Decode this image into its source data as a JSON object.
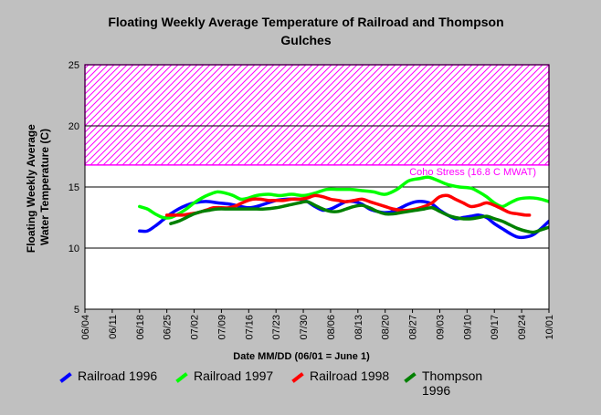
{
  "chart_data": {
    "type": "line",
    "title_lines": [
      "Floating Weekly Average Temperature of Railroad and Thompson",
      "Gulches"
    ],
    "ylabel_lines": [
      "Floating Weekly Average",
      "Water Temperature (C)"
    ],
    "xlabel": "Date MM/DD (06/01 = June 1)",
    "ylim": [
      5,
      25
    ],
    "yticks": [
      5,
      10,
      15,
      20,
      25
    ],
    "x_tick_labels": [
      "06/04",
      "06/11",
      "06/18",
      "06/25",
      "07/02",
      "07/09",
      "07/16",
      "07/23",
      "07/30",
      "08/06",
      "08/13",
      "08/20",
      "08/27",
      "09/03",
      "09/10",
      "09/17",
      "09/24",
      "10/01"
    ],
    "x_tick_days": [
      3,
      10,
      17,
      24,
      31,
      38,
      45,
      52,
      59,
      66,
      73,
      80,
      87,
      94,
      101,
      108,
      115,
      122
    ],
    "xlim_days": [
      3,
      122
    ],
    "threshold": {
      "label": "Coho Stress (16.8 C MWAT)",
      "value": 16.8,
      "band": [
        16.8,
        25
      ],
      "color": "#ff00ff"
    },
    "grid": {
      "horizontal": true,
      "vertical": false
    },
    "legend_position": "bottom",
    "series": [
      {
        "name": "Railroad 1996",
        "color": "#0000ff",
        "x": [
          17,
          19,
          21,
          23,
          25,
          27,
          29,
          31,
          33,
          35,
          37,
          40,
          43,
          45,
          47,
          49,
          52,
          55,
          58,
          60,
          62,
          64,
          66,
          68,
          70,
          72,
          74,
          76,
          78,
          80,
          82,
          84,
          86,
          88,
          90,
          92,
          94,
          96,
          98,
          100,
          102,
          104,
          106,
          108,
          110,
          112,
          114,
          116,
          118,
          120,
          122
        ],
        "y": [
          11.4,
          11.4,
          11.8,
          12.3,
          12.8,
          13.2,
          13.5,
          13.7,
          13.8,
          13.8,
          13.7,
          13.6,
          13.4,
          13.3,
          13.4,
          13.6,
          13.9,
          14.0,
          14.0,
          13.8,
          13.4,
          13.1,
          13.2,
          13.5,
          13.8,
          13.8,
          13.6,
          13.2,
          13.0,
          12.9,
          13.0,
          13.3,
          13.6,
          13.8,
          13.8,
          13.6,
          13.1,
          12.7,
          12.4,
          12.5,
          12.6,
          12.7,
          12.5,
          12.0,
          11.6,
          11.2,
          10.9,
          10.9,
          11.1,
          11.6,
          12.2
        ]
      },
      {
        "name": "Railroad 1997",
        "color": "#00ff00",
        "x": [
          17,
          19,
          21,
          23,
          25,
          27,
          29,
          31,
          33,
          35,
          37,
          39,
          41,
          43,
          45,
          47,
          50,
          53,
          56,
          59,
          62,
          65,
          68,
          71,
          74,
          77,
          80,
          83,
          86,
          89,
          91,
          93,
          96,
          99,
          102,
          104,
          106,
          108,
          110,
          112,
          114,
          116,
          118,
          120,
          122
        ],
        "y": [
          13.4,
          13.2,
          12.8,
          12.5,
          12.5,
          12.8,
          13.2,
          13.7,
          14.1,
          14.4,
          14.6,
          14.5,
          14.3,
          14.0,
          14.1,
          14.3,
          14.4,
          14.3,
          14.4,
          14.3,
          14.5,
          14.8,
          14.8,
          14.8,
          14.7,
          14.6,
          14.4,
          14.8,
          15.5,
          15.7,
          15.8,
          15.6,
          15.2,
          15.0,
          14.9,
          14.6,
          14.2,
          13.7,
          13.4,
          13.7,
          14.0,
          14.1,
          14.1,
          14.0,
          13.8
        ]
      },
      {
        "name": "Railroad 1998",
        "color": "#ff0000",
        "x": [
          24,
          26,
          28,
          30,
          32,
          34,
          36,
          38,
          40,
          42,
          44,
          46,
          48,
          50,
          52,
          54,
          56,
          58,
          60,
          62,
          64,
          66,
          68,
          70,
          72,
          74,
          76,
          78,
          80,
          82,
          84,
          86,
          88,
          90,
          92,
          94,
          96,
          98,
          100,
          102,
          104,
          106,
          108,
          110,
          112,
          114,
          116,
          117
        ],
        "y": [
          12.7,
          12.7,
          12.7,
          12.8,
          12.9,
          13.1,
          13.3,
          13.3,
          13.3,
          13.5,
          13.8,
          14.0,
          14.0,
          13.9,
          13.9,
          13.9,
          14.0,
          14.0,
          14.1,
          14.3,
          14.2,
          14.0,
          13.9,
          13.8,
          13.9,
          14.0,
          13.8,
          13.6,
          13.4,
          13.2,
          13.1,
          13.1,
          13.2,
          13.4,
          13.7,
          14.2,
          14.3,
          14.0,
          13.7,
          13.4,
          13.5,
          13.7,
          13.5,
          13.2,
          12.9,
          12.8,
          12.7,
          12.7
        ]
      },
      {
        "name": "Thompson 1996",
        "color": "#008000",
        "x": [
          25,
          27,
          29,
          31,
          33,
          35,
          37,
          40,
          43,
          46,
          49,
          52,
          55,
          58,
          60,
          62,
          64,
          66,
          68,
          70,
          72,
          74,
          76,
          78,
          80,
          82,
          84,
          86,
          88,
          90,
          92,
          94,
          96,
          98,
          100,
          102,
          104,
          106,
          108,
          110,
          112,
          114,
          116,
          118,
          120,
          122
        ],
        "y": [
          12.0,
          12.2,
          12.5,
          12.8,
          13.0,
          13.1,
          13.2,
          13.2,
          13.2,
          13.2,
          13.2,
          13.3,
          13.5,
          13.7,
          13.8,
          13.5,
          13.2,
          13.0,
          13.0,
          13.2,
          13.4,
          13.5,
          13.3,
          13.0,
          12.8,
          12.8,
          12.9,
          13.0,
          13.1,
          13.2,
          13.3,
          13.0,
          12.7,
          12.5,
          12.4,
          12.4,
          12.5,
          12.6,
          12.4,
          12.2,
          11.9,
          11.6,
          11.4,
          11.3,
          11.5,
          11.7
        ]
      }
    ],
    "legend_entries": [
      {
        "text": "Railroad 1996",
        "color": "#0000ff"
      },
      {
        "text": "Railroad 1997",
        "color": "#00ff00"
      },
      {
        "text": "Railroad 1998",
        "color": "#ff0000"
      },
      {
        "text": "Thompson 1996",
        "color": "#008000"
      }
    ]
  }
}
